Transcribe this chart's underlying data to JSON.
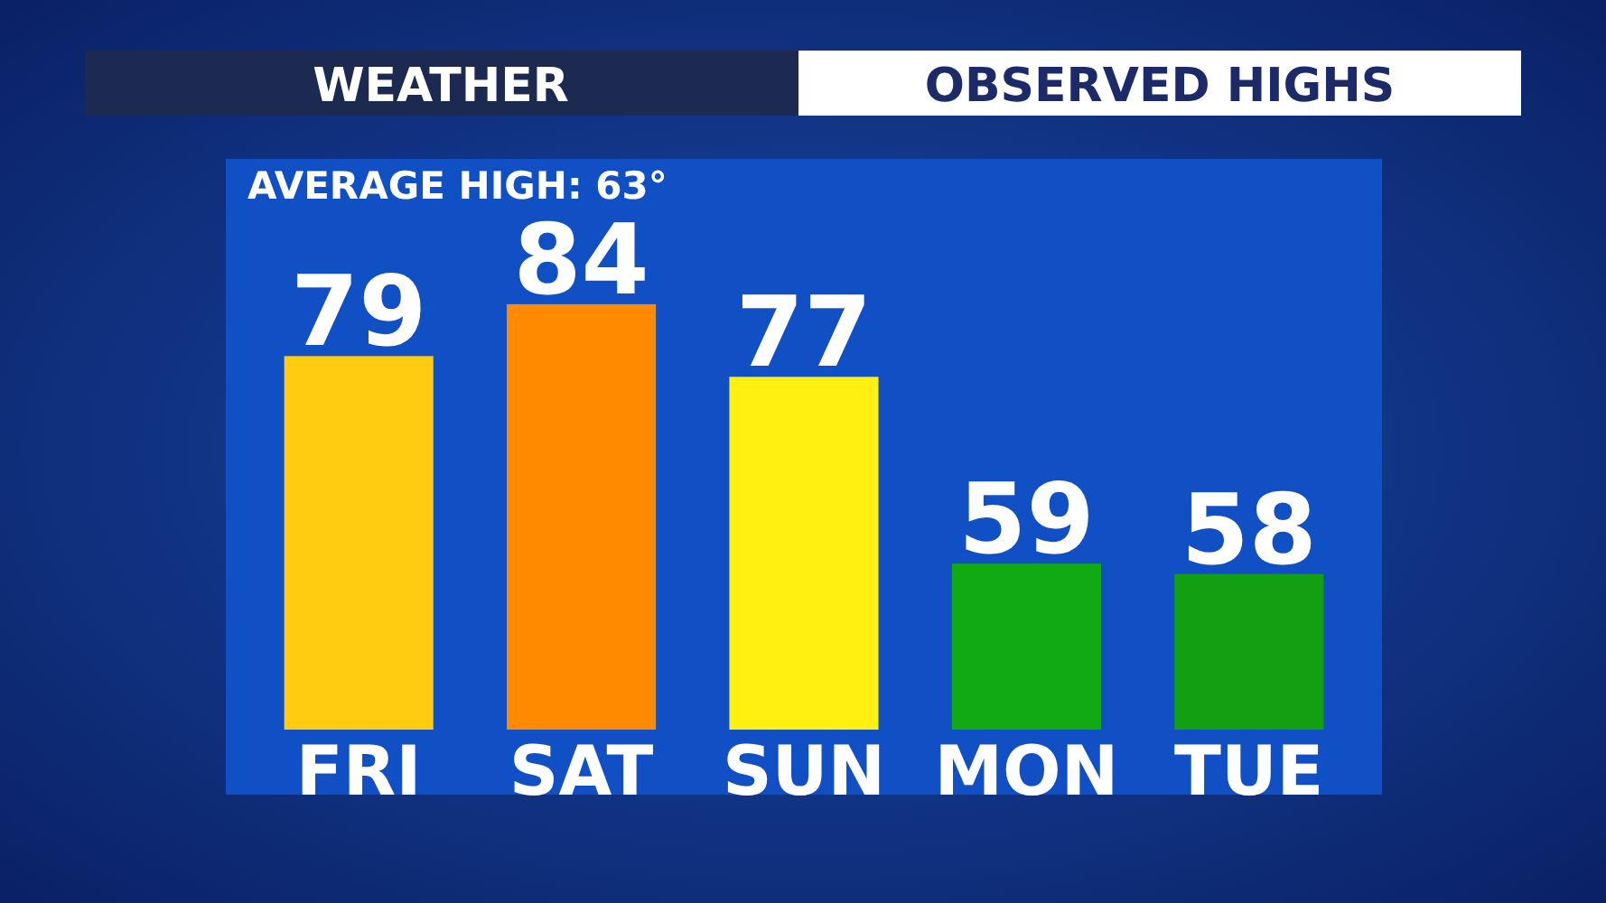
{
  "chart_data": {
    "type": "bar",
    "title": "OBSERVED HIGHS",
    "subtitle": "WEATHER",
    "categories": [
      "FRI",
      "SAT",
      "SUN",
      "MON",
      "TUE"
    ],
    "values": [
      79,
      84,
      77,
      59,
      58
    ],
    "colors": [
      "#ffcc11",
      "#ff8a00",
      "#fff012",
      "#12aa12",
      "#12a012"
    ],
    "ylim": [
      43,
      98
    ],
    "tick_labels": "x",
    "data_labels": true,
    "annotations": [
      "AVERAGE HIGH: 63°"
    ]
  }
}
